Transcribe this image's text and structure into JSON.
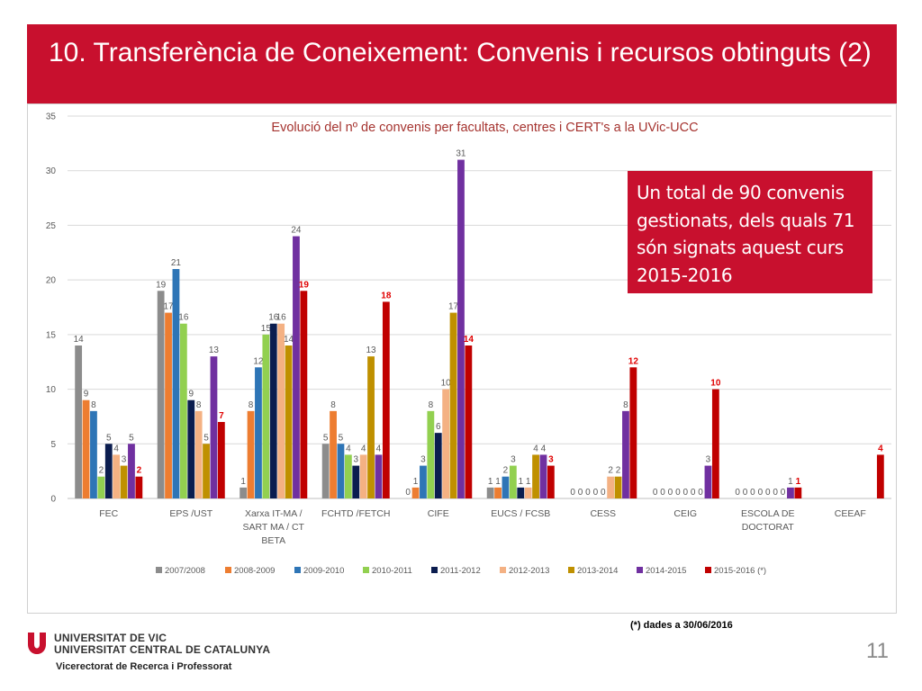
{
  "slide": {
    "title": "10. Transferència de Coneixement: Convenis i recursos obtinguts (2)",
    "callout": "Un total de 90 convenis gestionats, dels quals 71 són signats aquest curs  2015-2016",
    "footnote": "(*) dades a 30/06/2016",
    "university_line1": "UNIVERSITAT DE VIC",
    "university_line2": "UNIVERSITAT CENTRAL DE CATALUNYA",
    "vicerectorat": "Vicerectorat de Recerca i Professorat",
    "page_number": "11",
    "brand_color": "#c8102e"
  },
  "chart_data": {
    "type": "bar",
    "title": "Evolució del nº de convenis per facultats, centres i CERT's a la UVic-UCC",
    "xlabel": "",
    "ylabel": "",
    "ylim": [
      0,
      35
    ],
    "yticks": [
      0,
      5,
      10,
      15,
      20,
      25,
      30,
      35
    ],
    "grid": true,
    "legend_position": "bottom",
    "categories": [
      [
        "FEC"
      ],
      [
        "EPS /UST"
      ],
      [
        "Xarxa IT-MA /",
        "SART MA / CT",
        "BETA"
      ],
      [
        "FCHTD  /FETCH"
      ],
      [
        "CIFE"
      ],
      [
        "EUCS / FCSB"
      ],
      [
        "CESS"
      ],
      [
        "CEIG"
      ],
      [
        "ESCOLA DE",
        "DOCTORAT"
      ],
      [
        "CEEAF"
      ]
    ],
    "series": [
      {
        "name": "2007/2008",
        "color": "#8c8c8c",
        "values": [
          14,
          19,
          1,
          5,
          0,
          1,
          0,
          0,
          0,
          null
        ]
      },
      {
        "name": "2008-2009",
        "color": "#ed7d31",
        "values": [
          9,
          17,
          8,
          8,
          1,
          1,
          0,
          0,
          0,
          null
        ]
      },
      {
        "name": "2009-2010",
        "color": "#2e75b6",
        "values": [
          8,
          21,
          12,
          5,
          3,
          2,
          0,
          0,
          0,
          null
        ]
      },
      {
        "name": "2010-2011",
        "color": "#92d050",
        "values": [
          2,
          16,
          15,
          4,
          8,
          3,
          0,
          0,
          0,
          null
        ]
      },
      {
        "name": "2011-2012",
        "color": "#0b1d4f",
        "values": [
          5,
          9,
          16,
          3,
          6,
          1,
          0,
          0,
          0,
          null
        ]
      },
      {
        "name": "2012-2013",
        "color": "#f4b183",
        "values": [
          4,
          8,
          16,
          4,
          10,
          1,
          2,
          0,
          0,
          null
        ]
      },
      {
        "name": "2013-2014",
        "color": "#bf9000",
        "values": [
          3,
          5,
          14,
          13,
          17,
          4,
          2,
          0,
          0,
          null
        ]
      },
      {
        "name": "2014-2015",
        "color": "#7030a0",
        "values": [
          5,
          13,
          24,
          4,
          31,
          4,
          8,
          3,
          1,
          null
        ]
      },
      {
        "name": "2015-2016 (*)",
        "color": "#c00000",
        "values": [
          2,
          7,
          19,
          18,
          14,
          3,
          12,
          10,
          1,
          4
        ]
      }
    ]
  }
}
